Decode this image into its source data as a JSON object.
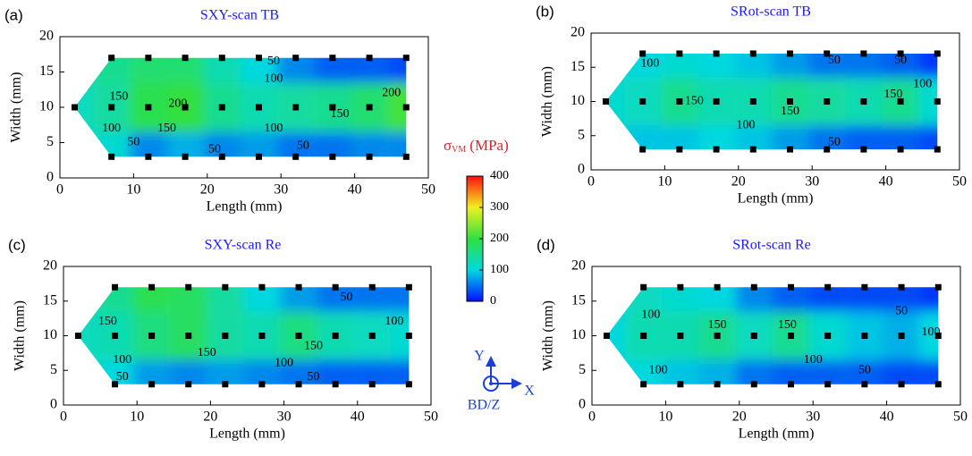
{
  "chart_data": [
    {
      "type": "contour",
      "panel": "(a)",
      "title": "SXY-scan TB",
      "x_label": "Length (mm)",
      "y_label": "Width (mm)",
      "xlim": [
        0,
        50
      ],
      "ylim": [
        0,
        20
      ],
      "xticks": [
        0,
        10,
        20,
        30,
        40,
        50
      ],
      "yticks": [
        0,
        5,
        10,
        15,
        20
      ],
      "region": {
        "x": [
          2,
          7,
          47,
          47,
          7
        ],
        "y": [
          10,
          17,
          17,
          3,
          3
        ]
      },
      "marker_color": "#000000",
      "points": {
        "x": [
          2,
          7,
          7,
          7,
          12,
          12,
          12,
          17,
          17,
          17,
          22,
          22,
          22,
          27,
          27,
          27,
          32,
          32,
          32,
          37,
          37,
          37,
          42,
          42,
          42,
          47,
          47,
          47
        ],
        "y": [
          10,
          3,
          10,
          17,
          3,
          10,
          17,
          3,
          10,
          17,
          3,
          10,
          17,
          3,
          10,
          17,
          3,
          10,
          17,
          3,
          10,
          17,
          3,
          10,
          17,
          3,
          10,
          17
        ],
        "values": [
          120,
          110,
          140,
          150,
          60,
          190,
          170,
          80,
          200,
          170,
          60,
          150,
          130,
          70,
          130,
          100,
          50,
          140,
          60,
          50,
          150,
          40,
          60,
          170,
          40,
          60,
          210,
          30
        ]
      },
      "contour_labels": [
        {
          "level": 150,
          "x": 8,
          "y": 11.5
        },
        {
          "level": 200,
          "x": 16,
          "y": 10.5
        },
        {
          "level": 150,
          "x": 14.5,
          "y": 7
        },
        {
          "level": 100,
          "x": 7,
          "y": 7
        },
        {
          "level": 50,
          "x": 10,
          "y": 5
        },
        {
          "level": 50,
          "x": 21,
          "y": 4
        },
        {
          "level": 100,
          "x": 29,
          "y": 7
        },
        {
          "level": 50,
          "x": 33,
          "y": 4.5
        },
        {
          "level": 50,
          "x": 29,
          "y": 16.5
        },
        {
          "level": 100,
          "x": 29,
          "y": 14
        },
        {
          "level": 200,
          "x": 45,
          "y": 12
        },
        {
          "level": 150,
          "x": 38,
          "y": 9
        }
      ]
    },
    {
      "type": "contour",
      "panel": "(b)",
      "title": "SRot-scan TB",
      "x_label": "Length (mm)",
      "y_label": "Width (mm)",
      "xlim": [
        0,
        50
      ],
      "ylim": [
        0,
        20
      ],
      "xticks": [
        0,
        10,
        20,
        30,
        40,
        50
      ],
      "yticks": [
        0,
        5,
        10,
        15,
        20
      ],
      "region": {
        "x": [
          2,
          7,
          47,
          47,
          7
        ],
        "y": [
          10,
          17,
          17,
          3,
          3
        ]
      },
      "marker_color": "#000000",
      "points": {
        "x": [
          2,
          7,
          7,
          7,
          12,
          12,
          12,
          17,
          17,
          17,
          22,
          22,
          22,
          27,
          27,
          27,
          32,
          32,
          32,
          37,
          37,
          37,
          42,
          42,
          42,
          47,
          47,
          47
        ],
        "y": [
          10,
          3,
          10,
          17,
          3,
          10,
          17,
          3,
          10,
          17,
          3,
          10,
          17,
          3,
          10,
          17,
          3,
          10,
          17,
          3,
          10,
          17,
          3,
          10,
          17,
          3,
          10,
          17
        ],
        "values": [
          110,
          90,
          120,
          100,
          90,
          150,
          110,
          100,
          130,
          100,
          90,
          130,
          90,
          70,
          150,
          70,
          50,
          140,
          50,
          40,
          130,
          50,
          40,
          150,
          40,
          30,
          110,
          20
        ]
      },
      "contour_labels": [
        {
          "level": 100,
          "x": 8,
          "y": 15.5
        },
        {
          "level": 150,
          "x": 14,
          "y": 10
        },
        {
          "level": 150,
          "x": 27,
          "y": 8.5
        },
        {
          "level": 150,
          "x": 41,
          "y": 11
        },
        {
          "level": 50,
          "x": 33,
          "y": 16
        },
        {
          "level": 50,
          "x": 42,
          "y": 16
        },
        {
          "level": 100,
          "x": 45,
          "y": 12.5
        },
        {
          "level": 100,
          "x": 21,
          "y": 6.5
        },
        {
          "level": 50,
          "x": 33,
          "y": 4
        }
      ]
    },
    {
      "type": "contour",
      "panel": "(c)",
      "title": "SXY-scan Re",
      "x_label": "Length (mm)",
      "y_label": "Width (mm)",
      "xlim": [
        0,
        50
      ],
      "ylim": [
        0,
        20
      ],
      "xticks": [
        0,
        10,
        20,
        30,
        40,
        50
      ],
      "yticks": [
        0,
        5,
        10,
        15,
        20
      ],
      "region": {
        "x": [
          2,
          7,
          47,
          47,
          7
        ],
        "y": [
          10,
          17,
          17,
          3,
          3
        ]
      },
      "marker_color": "#000000",
      "points": {
        "x": [
          2,
          7,
          7,
          7,
          12,
          12,
          12,
          17,
          17,
          17,
          22,
          22,
          22,
          27,
          27,
          27,
          32,
          32,
          32,
          37,
          37,
          37,
          42,
          42,
          42,
          47,
          47,
          47
        ],
        "y": [
          10,
          3,
          10,
          17,
          3,
          10,
          17,
          3,
          10,
          17,
          3,
          10,
          17,
          3,
          10,
          17,
          3,
          10,
          17,
          3,
          10,
          17,
          3,
          10,
          17,
          3,
          10,
          17
        ],
        "values": [
          120,
          100,
          130,
          150,
          70,
          160,
          190,
          60,
          180,
          180,
          70,
          140,
          140,
          60,
          130,
          100,
          50,
          160,
          70,
          40,
          130,
          50,
          40,
          120,
          50,
          40,
          110,
          50
        ]
      },
      "contour_labels": [
        {
          "level": 150,
          "x": 6,
          "y": 12
        },
        {
          "level": 100,
          "x": 8,
          "y": 6.5
        },
        {
          "level": 50,
          "x": 8,
          "y": 4
        },
        {
          "level": 150,
          "x": 19.5,
          "y": 7.5
        },
        {
          "level": 100,
          "x": 30,
          "y": 6
        },
        {
          "level": 50,
          "x": 34,
          "y": 4
        },
        {
          "level": 150,
          "x": 34,
          "y": 8.5
        },
        {
          "level": 50,
          "x": 38.5,
          "y": 15.5
        },
        {
          "level": 100,
          "x": 45,
          "y": 12
        }
      ]
    },
    {
      "type": "contour",
      "panel": "(d)",
      "title": "SRot-scan Re",
      "x_label": "Length (mm)",
      "y_label": "Width (mm)",
      "xlim": [
        0,
        50
      ],
      "ylim": [
        0,
        20
      ],
      "xticks": [
        0,
        10,
        20,
        30,
        40,
        50
      ],
      "yticks": [
        0,
        5,
        10,
        15,
        20
      ],
      "region": {
        "x": [
          2,
          7,
          47,
          47,
          7
        ],
        "y": [
          10,
          17,
          17,
          3,
          3
        ]
      },
      "marker_color": "#000000",
      "points": {
        "x": [
          2,
          7,
          7,
          7,
          12,
          12,
          12,
          17,
          17,
          17,
          22,
          22,
          22,
          27,
          27,
          27,
          32,
          32,
          32,
          37,
          37,
          37,
          42,
          42,
          42,
          47,
          47,
          47
        ],
        "y": [
          10,
          3,
          10,
          17,
          3,
          10,
          17,
          3,
          10,
          17,
          3,
          10,
          17,
          3,
          10,
          17,
          3,
          10,
          17,
          3,
          10,
          17,
          3,
          10,
          17,
          3,
          10,
          17
        ],
        "values": [
          100,
          100,
          130,
          120,
          90,
          130,
          110,
          80,
          150,
          100,
          50,
          120,
          60,
          40,
          150,
          40,
          40,
          110,
          30,
          40,
          90,
          30,
          30,
          80,
          30,
          30,
          100,
          20
        ]
      },
      "contour_labels": [
        {
          "level": 100,
          "x": 8,
          "y": 13
        },
        {
          "level": 150,
          "x": 17,
          "y": 11.5
        },
        {
          "level": 150,
          "x": 26.5,
          "y": 11.5
        },
        {
          "level": 100,
          "x": 9,
          "y": 5
        },
        {
          "level": 100,
          "x": 30,
          "y": 6.5
        },
        {
          "level": 50,
          "x": 37,
          "y": 5
        },
        {
          "level": 50,
          "x": 42,
          "y": 13.5
        },
        {
          "level": 100,
          "x": 46,
          "y": 10.5
        }
      ]
    }
  ],
  "colorbar": {
    "symbol": "σ",
    "subscript": "VM",
    "unit": "(MPa)",
    "label_color": "#e0202a",
    "lim": [
      0,
      400
    ],
    "ticks": [
      0,
      100,
      200,
      300,
      400
    ],
    "colors": [
      "#0010ff",
      "#00d8e0",
      "#30e040",
      "#f0f020",
      "#ff1010"
    ]
  },
  "axes_icon": {
    "y": "Y",
    "x": "X",
    "z": "BD/Z",
    "color": "#1a3fd8"
  },
  "title_color": "#1a1aff"
}
